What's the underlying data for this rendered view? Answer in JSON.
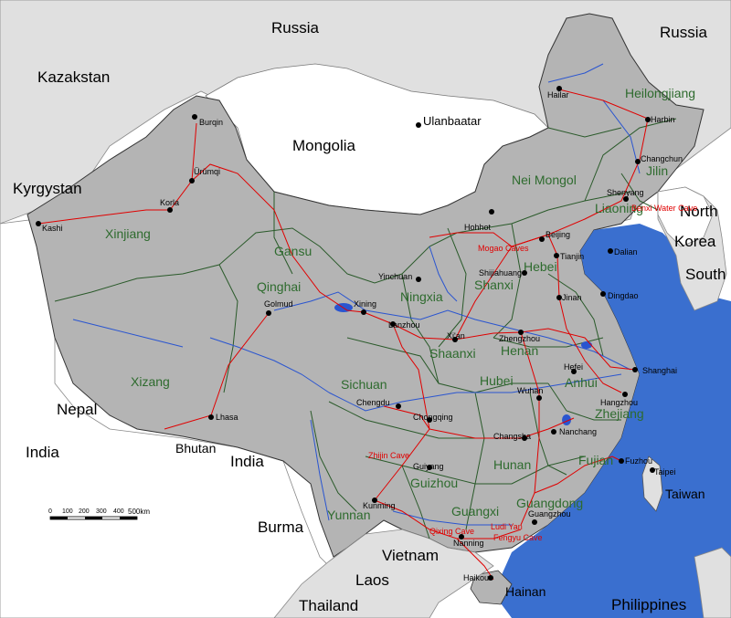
{
  "countries": [
    {
      "key": "russia_n",
      "name": "Russia"
    },
    {
      "key": "russia_ne",
      "name": "Russia"
    },
    {
      "key": "kazakstan",
      "name": "Kazakstan"
    },
    {
      "key": "mongolia",
      "name": "Mongolia"
    },
    {
      "key": "kyrgystan",
      "name": "Kyrgystan"
    },
    {
      "key": "north",
      "name": "North"
    },
    {
      "key": "korea",
      "name": "Korea"
    },
    {
      "key": "south",
      "name": "South"
    },
    {
      "key": "nepal",
      "name": "Nepal"
    },
    {
      "key": "india_w",
      "name": "India"
    },
    {
      "key": "india_e",
      "name": "India"
    },
    {
      "key": "bhutan",
      "name": "Bhutan"
    },
    {
      "key": "burma",
      "name": "Burma"
    },
    {
      "key": "vietnam",
      "name": "Vietnam"
    },
    {
      "key": "laos",
      "name": "Laos"
    },
    {
      "key": "thailand",
      "name": "Thailand"
    },
    {
      "key": "taiwan",
      "name": "Taiwan"
    },
    {
      "key": "philippines",
      "name": "Philippines"
    }
  ],
  "provinces": [
    "Heilongjiang",
    "Jilin",
    "Liaoning",
    "Nei Mongol",
    "Hebei",
    "Shanxi",
    "Gansu",
    "Qinghai",
    "Xinjiang",
    "Xizang",
    "Ningxia",
    "Shaanxi",
    "Henan",
    "Sichuan",
    "Hubei",
    "Anhui",
    "Zhejiang",
    "Hunan",
    "Fujian",
    "Guizhou",
    "Guangxi",
    "Guangdong",
    "Yunnan",
    "Hainan"
  ],
  "cities": [
    "Hailar",
    "Harbin",
    "Changchun",
    "Shenyang",
    "Dalian",
    "Beijing",
    "Tianjin",
    "Hohhot",
    "Shijiahuang",
    "Jinan",
    "Dingdao",
    "Ulanbaatar",
    "Burqin",
    "Ürümqi",
    "Korla",
    "Kashi",
    "Golmud",
    "Xining",
    "Lanzhou",
    "Yinchuan",
    "Xi'an",
    "Zhengzhou",
    "Shanghai",
    "Hefei",
    "Wuhan",
    "Hangzhou",
    "Nanchang",
    "Changsha",
    "Chengdu",
    "Chongqing",
    "Lhasa",
    "Guiyang",
    "Kunming",
    "Nanning",
    "Guangzhou",
    "Fuzhou",
    "Taipei",
    "Haikou"
  ],
  "caves": [
    "Benxi Water Cave",
    "Mogao Caves",
    "Zhijin Cave",
    "Qixing Cave",
    "Ludi Yan",
    "Fengyu Cave"
  ],
  "scale": {
    "ticks": [
      "0",
      "100",
      "200",
      "300",
      "400",
      "500km"
    ]
  },
  "colors": {
    "china": "#b4b4b4",
    "neighbor": "#e0e0e0",
    "sea": "#3a6fcf",
    "border": "#2a5a2a",
    "railway": "#e00000",
    "river": "#2a55d0"
  }
}
